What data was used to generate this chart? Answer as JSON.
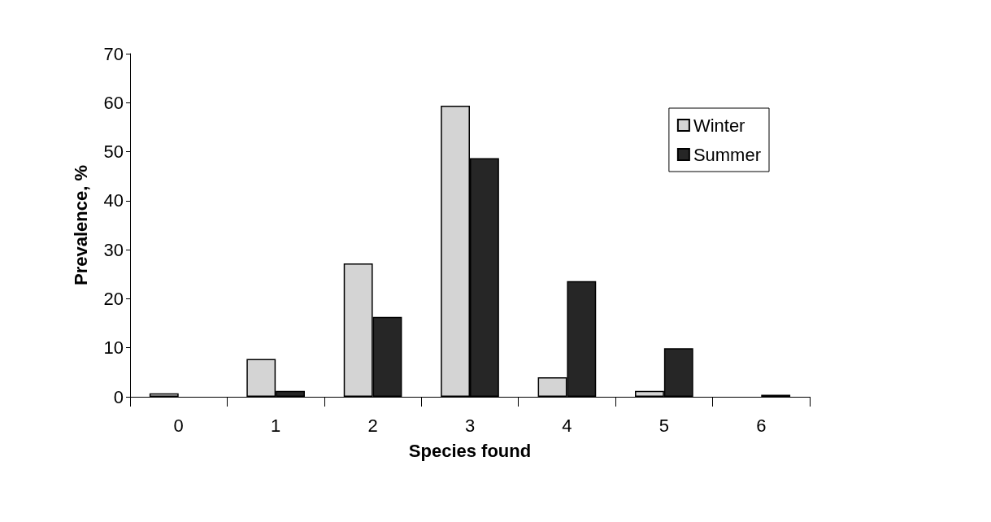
{
  "chart_data": {
    "type": "bar",
    "xlabel": "Species found",
    "ylabel": "Prevalence, %",
    "categories": [
      "0",
      "1",
      "2",
      "3",
      "4",
      "5",
      "6"
    ],
    "series": [
      {
        "name": "Winter",
        "color": "#d4d4d4",
        "values": [
          0.7,
          7.7,
          27.2,
          59.4,
          4.0,
          1.2,
          null
        ]
      },
      {
        "name": "Summer",
        "color": "#262626",
        "values": [
          null,
          1.2,
          16.3,
          48.7,
          23.6,
          9.9,
          0.4
        ]
      }
    ],
    "ylim": [
      0,
      70
    ],
    "yticks": [
      0,
      10,
      20,
      30,
      40,
      50,
      60,
      70
    ],
    "grid": false,
    "legend": "top right"
  }
}
